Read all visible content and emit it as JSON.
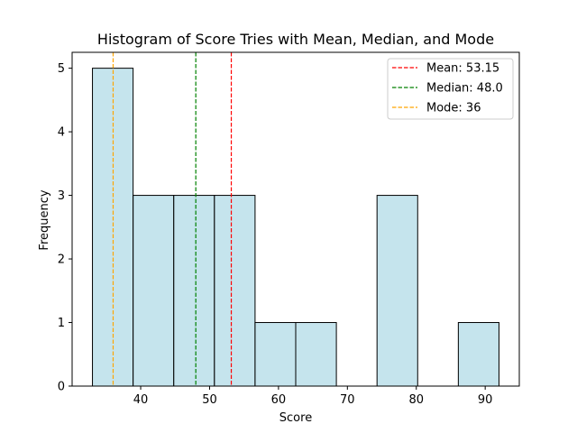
{
  "chart_data": {
    "type": "bar",
    "title": "Histogram of Score Tries with Mean, Median, and Mode",
    "xlabel": "Score",
    "ylabel": "Frequency",
    "xlim": [
      30.05,
      94.95
    ],
    "ylim": [
      0,
      5.25
    ],
    "x_ticks": [
      40,
      50,
      60,
      70,
      80,
      90
    ],
    "y_ticks": [
      0,
      1,
      2,
      3,
      4,
      5
    ],
    "bins": [
      {
        "start": 33.0,
        "end": 38.9,
        "count": 5
      },
      {
        "start": 38.9,
        "end": 44.8,
        "count": 3
      },
      {
        "start": 44.8,
        "end": 50.7,
        "count": 3
      },
      {
        "start": 50.7,
        "end": 56.6,
        "count": 3
      },
      {
        "start": 56.6,
        "end": 62.5,
        "count": 1
      },
      {
        "start": 62.5,
        "end": 68.4,
        "count": 1
      },
      {
        "start": 68.4,
        "end": 74.3,
        "count": 0
      },
      {
        "start": 74.3,
        "end": 80.2,
        "count": 3
      },
      {
        "start": 80.2,
        "end": 86.1,
        "count": 0
      },
      {
        "start": 86.1,
        "end": 92.0,
        "count": 1
      }
    ],
    "bar_color": "#add8e6",
    "bar_edge_color": "#000000",
    "reference_lines": [
      {
        "label": "Mean: 53.15",
        "value": 53.15,
        "color": "#ff0000"
      },
      {
        "label": "Median: 48.0",
        "value": 48.0,
        "color": "#008000"
      },
      {
        "label": "Mode: 36",
        "value": 36,
        "color": "#ffa500"
      }
    ],
    "legend_position": "top-right",
    "grid": false
  }
}
